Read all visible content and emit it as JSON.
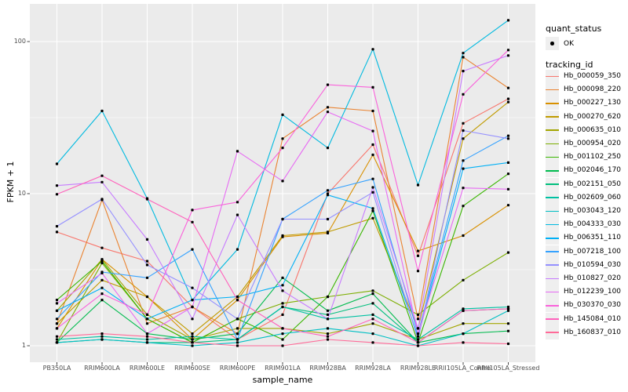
{
  "figure": {
    "background": "#ffffff",
    "panel_background": "#ebebeb",
    "gridline_color": "#ffffff",
    "tick_text_color": "#4d4d4d",
    "point_color": "#000000"
  },
  "legend": {
    "quant_title": "quant_status",
    "ok_label": "OK",
    "tracking_title": "tracking_id"
  },
  "chart_data": {
    "type": "line",
    "title": "",
    "xlabel": "sample_name",
    "ylabel": "FPKM + 1",
    "yscale": "log10",
    "ylim": [
      1,
      140
    ],
    "yticks": [
      1,
      10,
      100
    ],
    "grid": true,
    "legend_position": "right",
    "marker_legend": {
      "title": "quant_status",
      "label": "OK",
      "marker": "point"
    },
    "series_legend_title": "tracking_id",
    "categories": [
      "PB350LA",
      "RRIM600LA",
      "RRIM600LE",
      "RRIM600SE",
      "RRIM600PE",
      "RRIM901LA",
      "RRIM928BA",
      "RRIM928LA",
      "RRIM928LE",
      "RRII105LA_Control",
      "RRII105LA_Stressed"
    ],
    "series": [
      {
        "name": "Hb_000059_350",
        "color": "#F8766D",
        "values": [
          5.6,
          4.4,
          3.6,
          1.8,
          1.1,
          1.6,
          10,
          21,
          3.9,
          29,
          42
        ]
      },
      {
        "name": "Hb_000098_220",
        "color": "#EA8331",
        "values": [
          1.4,
          9.1,
          1.4,
          1.8,
          1.2,
          23,
          37,
          35,
          1.5,
          79,
          49.5
        ]
      },
      {
        "name": "Hb_000227_130",
        "color": "#D89000",
        "values": [
          1.3,
          3.7,
          2.1,
          1.1,
          2.0,
          5.2,
          5.5,
          18,
          4.2,
          5.3,
          8.4
        ]
      },
      {
        "name": "Hb_000270_620",
        "color": "#C09B00",
        "values": [
          1.4,
          2.7,
          2.1,
          1.2,
          2.1,
          5.3,
          5.6,
          6.9,
          1.3,
          23,
          40
        ]
      },
      {
        "name": "Hb_000635_010",
        "color": "#A3A500",
        "values": [
          1.7,
          3.7,
          1.6,
          1.1,
          1.3,
          1.3,
          1.2,
          1.4,
          1.1,
          1.4,
          1.4
        ]
      },
      {
        "name": "Hb_000954_020",
        "color": "#7CAE00",
        "values": [
          1.05,
          3.5,
          1.5,
          1.05,
          1.5,
          1.9,
          2.1,
          2.3,
          1.6,
          2.7,
          4.1
        ]
      },
      {
        "name": "Hb_001102_250",
        "color": "#39B600",
        "values": [
          2.0,
          3.6,
          1.5,
          1.05,
          1.5,
          1.1,
          2.1,
          7.7,
          1.05,
          8.3,
          13.5
        ]
      },
      {
        "name": "Hb_002046_170",
        "color": "#00BB4E",
        "values": [
          1.05,
          2.0,
          1.2,
          1.1,
          1.2,
          2.8,
          1.7,
          2.2,
          1.05,
          1.2,
          1.25
        ]
      },
      {
        "name": "Hb_002151_050",
        "color": "#00BF7D",
        "values": [
          1.05,
          1.1,
          1.05,
          1.05,
          1.1,
          1.8,
          1.6,
          1.9,
          1.05,
          1.7,
          1.75
        ]
      },
      {
        "name": "Hb_002609_060",
        "color": "#00C1A3",
        "values": [
          1.1,
          1.15,
          1.1,
          1.15,
          1.1,
          1.8,
          1.5,
          1.6,
          1.1,
          1.75,
          1.8
        ]
      },
      {
        "name": "Hb_003043_120",
        "color": "#00BFC4",
        "values": [
          1.05,
          1.1,
          1.05,
          1.0,
          1.05,
          1.2,
          1.3,
          1.2,
          1.0,
          1.2,
          1.7
        ]
      },
      {
        "name": "Hb_004333_030",
        "color": "#00BAE0",
        "values": [
          15.7,
          35,
          9.3,
          2.0,
          4.3,
          33,
          20,
          89,
          11.4,
          84,
          138
        ]
      },
      {
        "name": "Hb_006351_110",
        "color": "#00B0F6",
        "values": [
          1.7,
          2.4,
          1.5,
          2.0,
          2.1,
          2.5,
          9.8,
          8.0,
          1.15,
          14.6,
          16
        ]
      },
      {
        "name": "Hb_007218_100",
        "color": "#35A2FF",
        "values": [
          1.5,
          3.05,
          2.8,
          4.3,
          1.1,
          6.8,
          10.5,
          12.5,
          1.2,
          16.5,
          24
        ]
      },
      {
        "name": "Hb_010594_030",
        "color": "#9590FF",
        "values": [
          6.1,
          9.2,
          3.4,
          2.4,
          1.5,
          6.8,
          6.8,
          10.2,
          1.1,
          26,
          23
        ]
      },
      {
        "name": "Hb_010827_020",
        "color": "#C77CFF",
        "values": [
          11.3,
          11.9,
          5.0,
          1.5,
          7.25,
          2.3,
          1.5,
          11,
          1.3,
          64,
          81
        ]
      },
      {
        "name": "Hb_012239_100",
        "color": "#E76BF3",
        "values": [
          1.9,
          3.0,
          1.2,
          1.8,
          19,
          12.1,
          34.5,
          25.8,
          1.2,
          10.9,
          10.7
        ]
      },
      {
        "name": "Hb_030370_030",
        "color": "#FA62DB",
        "values": [
          1.3,
          2.2,
          1.6,
          7.8,
          8.8,
          20,
          52,
          50,
          3.1,
          45,
          88
        ]
      },
      {
        "name": "Hb_145084_010",
        "color": "#FF62BC",
        "values": [
          9.9,
          13.1,
          9.2,
          6.5,
          2.0,
          1.3,
          1.15,
          1.5,
          1.05,
          1.7,
          1.75
        ]
      },
      {
        "name": "Hb_160837_010",
        "color": "#FF6A98",
        "values": [
          1.15,
          1.2,
          1.15,
          1.05,
          1.0,
          1.0,
          1.1,
          1.05,
          1.0,
          1.05,
          1.03
        ]
      }
    ]
  }
}
